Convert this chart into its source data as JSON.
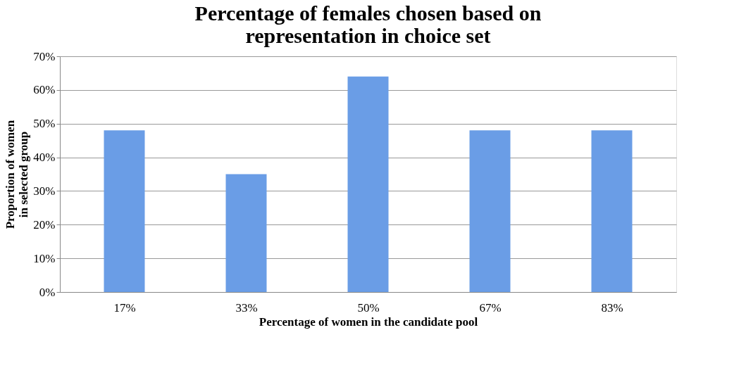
{
  "chart_data": {
    "type": "bar",
    "title": "Percentage of females chosen based on\nrepresentation in choice set",
    "xlabel": "Percentage of women in the candidate pool",
    "ylabel": "Proportion of women\nin selected group",
    "categories": [
      "17%",
      "33%",
      "50%",
      "67%",
      "83%"
    ],
    "values": [
      48,
      35,
      64,
      48,
      48
    ],
    "color": "#6a9de6",
    "ylim": [
      0,
      70
    ],
    "yticks": [
      {
        "value": 0,
        "label": "0%"
      },
      {
        "value": 10,
        "label": "10%"
      },
      {
        "value": 20,
        "label": "20%"
      },
      {
        "value": 30,
        "label": "30%"
      },
      {
        "value": 40,
        "label": "40%"
      },
      {
        "value": 50,
        "label": "50%"
      },
      {
        "value": 60,
        "label": "60%"
      },
      {
        "value": 70,
        "label": "70%"
      }
    ],
    "grid": "y"
  }
}
